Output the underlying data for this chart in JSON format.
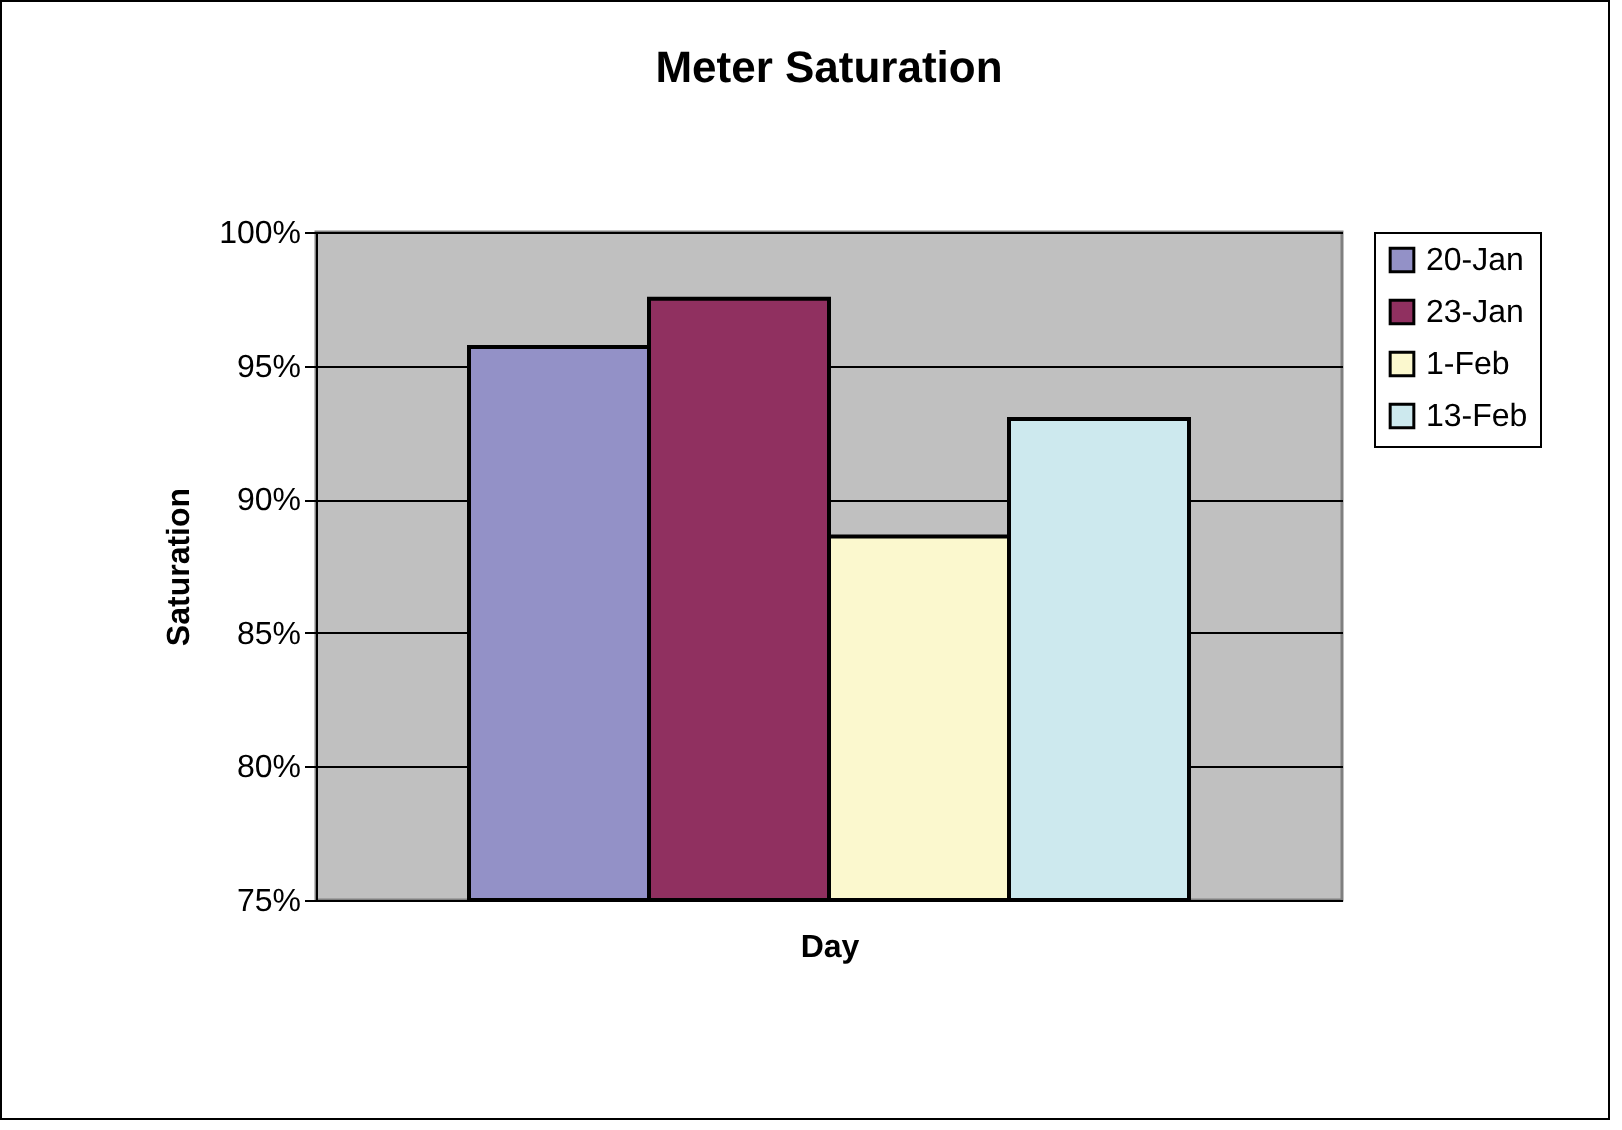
{
  "chart_data": {
    "type": "bar",
    "title": "Meter Saturation",
    "xlabel": "Day",
    "ylabel": "Saturation",
    "categories": [
      null
    ],
    "series": [
      {
        "name": "20-Jan",
        "color": "#9391c7",
        "values": [
          95.7
        ]
      },
      {
        "name": "23-Jan",
        "color": "#903060",
        "values": [
          97.5
        ]
      },
      {
        "name": "1-Feb",
        "color": "#fbf8ce",
        "values": [
          88.6
        ]
      },
      {
        "name": "13-Feb",
        "color": "#cde9ee",
        "values": [
          93.0
        ]
      }
    ],
    "ylim": [
      75,
      100
    ],
    "yticks": [
      {
        "value": 75,
        "label": "75%"
      },
      {
        "value": 80,
        "label": "80%"
      },
      {
        "value": 85,
        "label": "85%"
      },
      {
        "value": 90,
        "label": "90%"
      },
      {
        "value": 95,
        "label": "95%"
      },
      {
        "value": 100,
        "label": "100%"
      }
    ],
    "grid": "y",
    "legend": "right",
    "tick_labels": "y"
  }
}
